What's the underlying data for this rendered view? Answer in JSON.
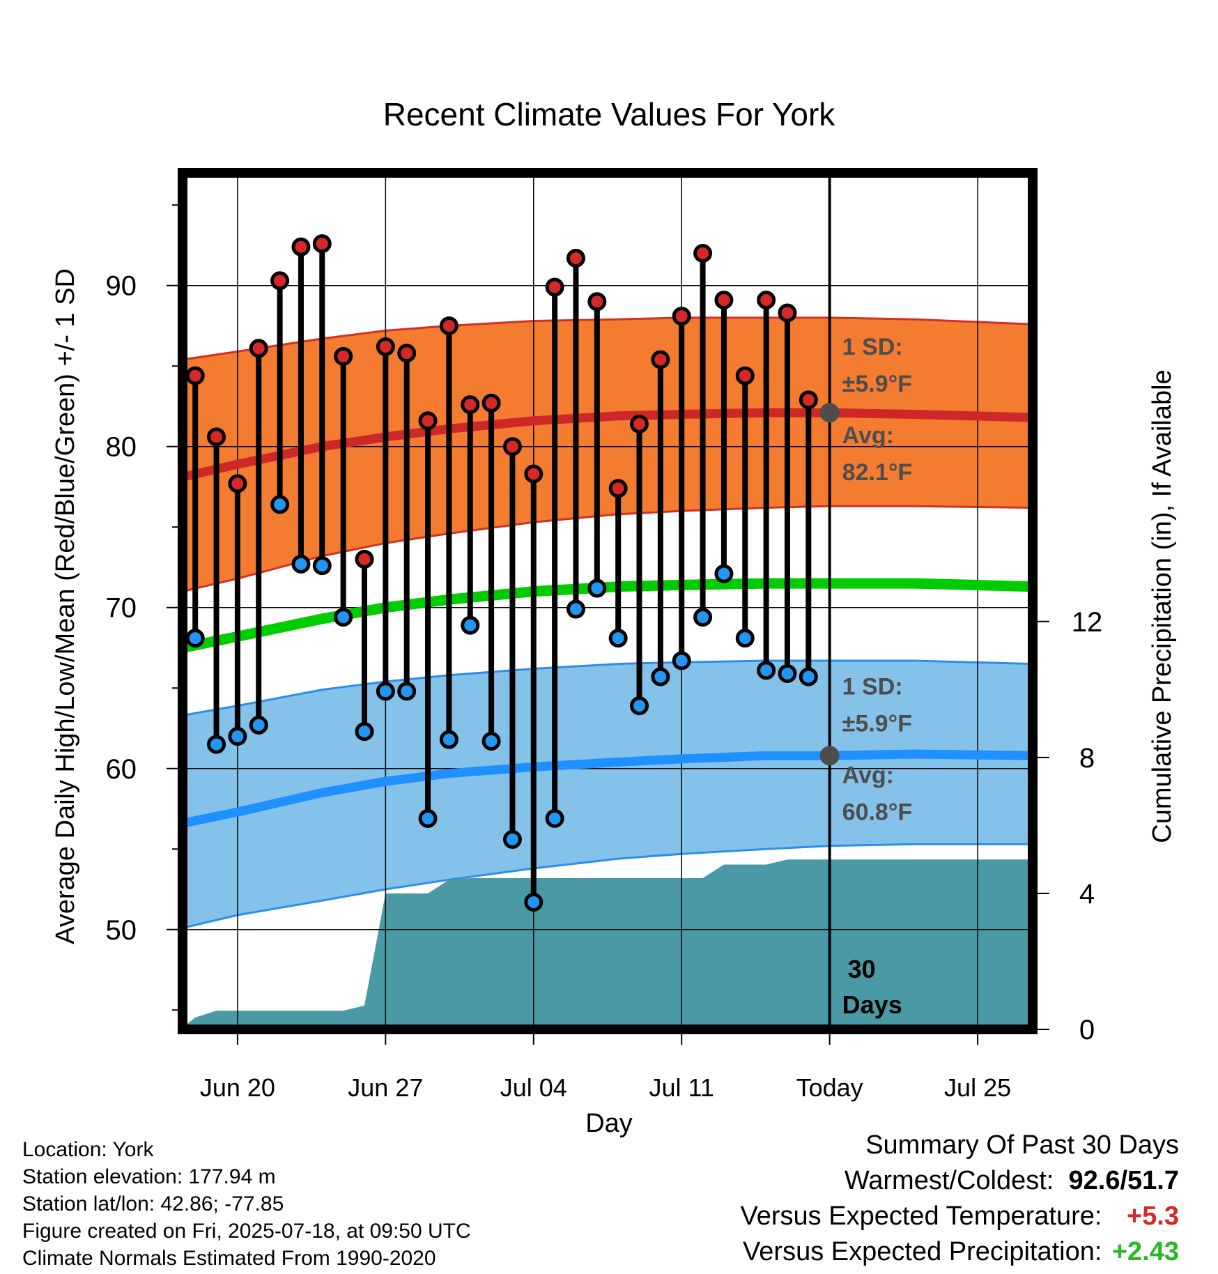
{
  "chart_data": {
    "type": "line",
    "title": "Recent Climate Values For York",
    "xlabel": "Day",
    "ylabel_left": "Average Daily High/Low/Mean (Red/Blue/Green) +/- 1 SD",
    "ylabel_right": "Cumulative Precipitation (in), If Available",
    "x_tick_labels": [
      "Jun 20",
      "Jun 27",
      "Jul 04",
      "Jul 11",
      "Today",
      "Jul 25"
    ],
    "y_left_ticks": [
      50,
      60,
      70,
      80,
      90
    ],
    "y_left_range": [
      43.8,
      97.0
    ],
    "y_right_ticks": [
      0,
      4,
      8,
      12
    ],
    "y_right_range": [
      0,
      25.2
    ],
    "x_range_days_from_jun20": [
      -2.6,
      37.6
    ],
    "tick_days": [
      0,
      7,
      14,
      21,
      28,
      35
    ],
    "today_day": 28,
    "grid": true,
    "colors": {
      "high_band": "#f47c30",
      "high_edge": "#d32f23",
      "high_mean": "#cc2828",
      "low_band": "#85c2ea",
      "low_edge": "#2b8ee8",
      "low_mean": "#1e90ff",
      "mean_line": "#00cc00",
      "precip": "#4a9aa6",
      "high_dot": "#d62828",
      "low_dot": "#2196f3",
      "annotation": "#4d4d4d",
      "positive_temp": "#d62828",
      "positive_precip": "#22bb22"
    },
    "normals": {
      "days": [
        -2.6,
        0,
        4,
        7,
        10,
        14,
        18,
        21,
        25,
        28,
        32,
        37.6
      ],
      "high_mean": [
        78.1,
        78.9,
        80.0,
        80.6,
        81.1,
        81.6,
        81.9,
        82.0,
        82.1,
        82.1,
        82.0,
        81.8
      ],
      "high_upper": [
        85.4,
        85.9,
        86.7,
        87.2,
        87.5,
        87.8,
        87.9,
        88.0,
        88.0,
        88.0,
        87.9,
        87.6
      ],
      "high_lower": [
        71.0,
        71.8,
        73.2,
        74.0,
        74.6,
        75.3,
        75.8,
        76.0,
        76.2,
        76.3,
        76.3,
        76.2
      ],
      "mean_line": [
        67.5,
        68.2,
        69.3,
        70.0,
        70.5,
        71.0,
        71.3,
        71.4,
        71.5,
        71.5,
        71.5,
        71.3
      ],
      "low_mean": [
        56.6,
        57.3,
        58.5,
        59.2,
        59.7,
        60.1,
        60.4,
        60.6,
        60.8,
        60.8,
        60.9,
        60.8
      ],
      "low_upper": [
        63.3,
        63.9,
        64.9,
        65.4,
        65.8,
        66.2,
        66.5,
        66.6,
        66.7,
        66.7,
        66.7,
        66.5
      ],
      "low_lower": [
        50.1,
        50.9,
        51.8,
        52.5,
        53.1,
        53.8,
        54.4,
        54.7,
        55.0,
        55.2,
        55.3,
        55.3
      ]
    },
    "daily": {
      "days": [
        -2,
        -1,
        0,
        1,
        2,
        3,
        4,
        5,
        6,
        7,
        8,
        9,
        10,
        11,
        12,
        13,
        14,
        15,
        16,
        17,
        18,
        19,
        20,
        21,
        22,
        23,
        24,
        25,
        26,
        27
      ],
      "highs": [
        84.4,
        80.6,
        77.7,
        86.1,
        90.3,
        92.4,
        92.6,
        85.6,
        73.0,
        86.2,
        85.8,
        81.6,
        87.5,
        82.6,
        82.7,
        80.0,
        78.3,
        89.9,
        91.7,
        89.0,
        77.4,
        81.4,
        85.4,
        88.1,
        92.0,
        89.1,
        84.4,
        89.1,
        88.3,
        82.9
      ],
      "lows": [
        68.1,
        61.5,
        62.0,
        62.7,
        76.4,
        72.7,
        72.6,
        69.4,
        62.3,
        64.8,
        64.8,
        56.9,
        61.8,
        68.9,
        61.7,
        55.6,
        51.7,
        56.9,
        69.9,
        71.2,
        68.1,
        63.9,
        65.7,
        66.7,
        69.4,
        72.1,
        68.1,
        66.1,
        65.9,
        65.7
      ]
    },
    "precip": {
      "days": [
        -2.6,
        -2.0,
        -1.0,
        0,
        2,
        4,
        5,
        6,
        7.0,
        7.8,
        9,
        10,
        11,
        14,
        18,
        21,
        22,
        23,
        25,
        26,
        28,
        37.6
      ],
      "values": [
        0.05,
        0.35,
        0.55,
        0.55,
        0.55,
        0.55,
        0.55,
        0.7,
        4.0,
        4.0,
        4.0,
        4.4,
        4.45,
        4.45,
        4.45,
        4.45,
        4.45,
        4.85,
        4.85,
        5.0,
        5.0,
        5.0
      ]
    },
    "annotations": {
      "high_sd": "1 SD:",
      "high_sd_value": "±5.9°F",
      "high_avg": "Avg:",
      "high_avg_value": "82.1°F",
      "high_avg_number": 82.1,
      "low_sd": "1 SD:",
      "low_sd_value": "±5.9°F",
      "low_avg": "Avg:",
      "low_avg_value": "60.8°F",
      "low_avg_number": 60.8,
      "window_number": "30",
      "window_unit": "Days"
    }
  },
  "station": {
    "location": "Location: York",
    "elevation": "Station elevation: 177.94 m",
    "latlon": "Station lat/lon: 42.86; -77.85",
    "created": "Figure created on Fri, 2025-07-18, at 09:50 UTC",
    "normals": "Climate Normals Estimated From 1990-2020"
  },
  "summary": {
    "title": "Summary Of Past 30 Days",
    "warm_cold_label": "Warmest/Coldest:",
    "warmest": "92.6",
    "separator": "/",
    "coldest": "51.7",
    "temp_label": "Versus Expected Temperature:",
    "temp_value": "+5.3",
    "precip_label": "Versus Expected Precipitation:",
    "precip_value": "+2.43"
  }
}
